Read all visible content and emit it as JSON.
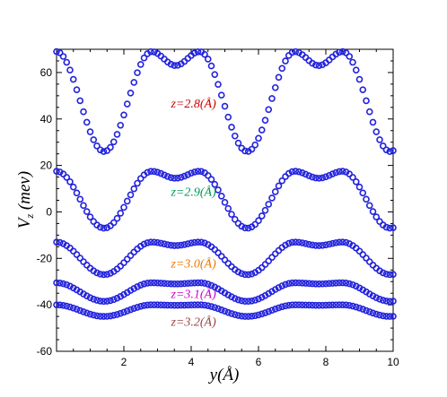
{
  "chart_data": {
    "type": "scatter",
    "title": "",
    "xlabel": "y(Å)",
    "ylabel_main": "V",
    "ylabel_sub": "z",
    "ylabel_unit": " (mev)",
    "xlim": [
      0,
      10
    ],
    "ylim": [
      -60,
      70
    ],
    "xticks": [
      2,
      4,
      6,
      8,
      10
    ],
    "yticks": [
      -60,
      -40,
      -20,
      0,
      20,
      40,
      60
    ],
    "grid": false,
    "legend": "none",
    "period": 4.25,
    "marker_color": "#2222dd",
    "series": [
      {
        "name": "z=2.8(Å)",
        "label_color": "#cc0000",
        "x": [
          0.0,
          1.415,
          2.83,
          3.54,
          4.25,
          5.665,
          7.08,
          7.79,
          8.5,
          9.915,
          10.0
        ],
        "y": [
          69,
          26,
          69,
          63,
          69,
          26,
          69,
          63,
          69,
          26,
          26
        ]
      },
      {
        "name": "z=2.9(Å)",
        "label_color": "#009955",
        "x": [
          0.0,
          1.415,
          2.83,
          3.54,
          4.25,
          5.665,
          7.08,
          7.79,
          8.5,
          9.915,
          10.0
        ],
        "y": [
          17.5,
          -7,
          17.5,
          14.5,
          17.5,
          -7,
          17.5,
          14.5,
          17.5,
          -7,
          -7
        ]
      },
      {
        "name": "z=3.0(Å)",
        "label_color": "#ee7700",
        "x": [
          0.0,
          1.415,
          2.83,
          3.54,
          4.25,
          5.665,
          7.08,
          7.79,
          8.5,
          9.915,
          10.0
        ],
        "y": [
          -13,
          -27,
          -13,
          -14.5,
          -13,
          -27,
          -13,
          -14.5,
          -13,
          -27,
          -27
        ]
      },
      {
        "name": "z=3.1(Å)",
        "label_color": "#cc00cc",
        "x": [
          0.0,
          1.415,
          2.83,
          3.54,
          4.25,
          5.665,
          7.08,
          7.79,
          8.5,
          9.915,
          10.0
        ],
        "y": [
          -30.5,
          -38.5,
          -30.5,
          -31,
          -30.5,
          -38.5,
          -30.5,
          -31,
          -30.5,
          -38.5,
          -38.5
        ]
      },
      {
        "name": "z=3.2(Å)",
        "label_color": "#994444",
        "x": [
          0.0,
          1.415,
          2.83,
          3.54,
          4.25,
          5.665,
          7.08,
          7.79,
          8.5,
          9.915,
          10.0
        ],
        "y": [
          -40,
          -45,
          -40,
          -40.2,
          -40,
          -45,
          -40,
          -40.2,
          -40,
          -45,
          -45
        ]
      }
    ],
    "annotations": [
      {
        "text": "z=2.8(Å)",
        "x": 3.4,
        "y": 45,
        "color": "#cc0000"
      },
      {
        "text": "z=2.9(Å)",
        "x": 3.4,
        "y": 7,
        "color": "#009955"
      },
      {
        "text": "z=3.0(Å)",
        "x": 3.4,
        "y": -24,
        "color": "#ee7700"
      },
      {
        "text": "z=3.1(Å)",
        "x": 3.4,
        "y": -37,
        "color": "#cc00cc"
      },
      {
        "text": "z=3.2(Å)",
        "x": 3.4,
        "y": -49,
        "color": "#994444"
      }
    ]
  }
}
